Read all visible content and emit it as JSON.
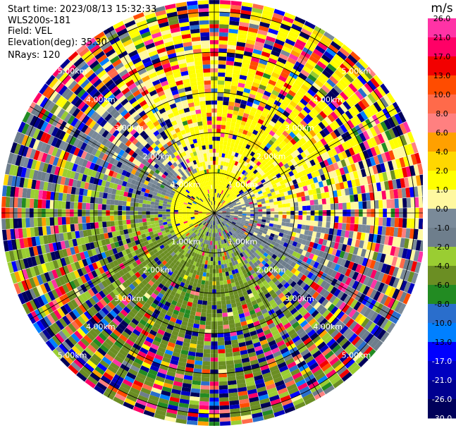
{
  "chart_data": {
    "type": "heatmap",
    "subtype": "ppi-polar",
    "info": {
      "start_time": "Start time: 2023/08/13 15:32:33",
      "instrument": "WLS200s-181",
      "field": "Field: VEL",
      "elevation": "Elevation(deg): 35.30",
      "nrays": "NRays: 120"
    },
    "range_rings_km": [
      1.0,
      2.0,
      3.0,
      4.0,
      5.0
    ],
    "range_ring_labels": [
      "1.00km",
      "2.00km",
      "3.00km",
      "4.00km",
      "5.00km"
    ],
    "max_range_km": 5.3,
    "n_rays": 120,
    "n_gates": 53,
    "spoke_angles_deg": [
      0,
      30,
      60,
      90,
      120,
      150,
      180,
      210,
      240,
      270,
      300,
      330
    ],
    "colorbar": {
      "unit": "m/s",
      "ticks": [
        "26.0",
        "21.0",
        "17.0",
        "13.0",
        "10.0",
        "8.0",
        "6.0",
        "4.0",
        "2.0",
        "1.0",
        "0.0",
        "-1.0",
        "-2.0",
        "-4.0",
        "-6.0",
        "-8.0",
        "-10.0",
        "-13.0",
        "-17.0",
        "-21.0",
        "-26.0",
        "-30.0"
      ],
      "bins": [
        {
          "min": 26,
          "color": "#ff33a6"
        },
        {
          "min": 21,
          "color": "#ff0066"
        },
        {
          "min": 17,
          "color": "#f20000"
        },
        {
          "min": 13,
          "color": "#ff4c00"
        },
        {
          "min": 10,
          "color": "#ff6a4a"
        },
        {
          "min": 8,
          "color": "#ff8080"
        },
        {
          "min": 6,
          "color": "#ffa000"
        },
        {
          "min": 4,
          "color": "#ffd700"
        },
        {
          "min": 2,
          "color": "#ffff00"
        },
        {
          "min": 1,
          "color": "#fff8a0"
        },
        {
          "min": 0,
          "color": "#7a8a99"
        },
        {
          "min": -1,
          "color": "#6e7e8c"
        },
        {
          "min": -2,
          "color": "#9acd32"
        },
        {
          "min": -4,
          "color": "#6b8e23"
        },
        {
          "min": -6,
          "color": "#228b22"
        },
        {
          "min": -8,
          "color": "#2a6ecc"
        },
        {
          "min": -10,
          "color": "#0080ff"
        },
        {
          "min": -13,
          "color": "#0000ff"
        },
        {
          "min": -17,
          "color": "#0000c0"
        },
        {
          "min": -21,
          "color": "#000090"
        },
        {
          "min": -26,
          "color": "#00005a"
        }
      ]
    }
  }
}
